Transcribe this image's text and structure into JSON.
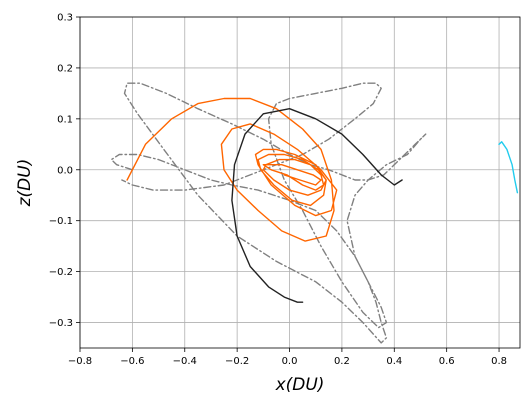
{
  "chart_data": {
    "type": "line",
    "title": "",
    "xlabel": "x(DU)",
    "ylabel": "z(DU)",
    "xlim": [
      -0.8,
      0.88
    ],
    "ylim": [
      -0.35,
      0.3
    ],
    "grid": true,
    "legend": "none",
    "xticks": [
      -0.8,
      -0.6,
      -0.4,
      -0.2,
      0.0,
      0.2,
      0.4,
      0.6,
      0.8
    ],
    "xtick_labels": [
      "−0.8",
      "−0.6",
      "−0.4",
      "−0.2",
      "0.0",
      "0.2",
      "0.4",
      "0.6",
      "0.8"
    ],
    "yticks": [
      -0.3,
      -0.2,
      -0.1,
      0.0,
      0.1,
      0.2,
      0.3
    ],
    "ytick_labels": [
      "−0.3",
      "−0.2",
      "−0.1",
      "0.0",
      "0.1",
      "0.2",
      "0.3"
    ],
    "series": [
      {
        "color": "#808080",
        "style": "dashdot",
        "x": [
          -0.6,
          -0.66,
          -0.68,
          -0.65,
          -0.58,
          -0.5,
          -0.4,
          -0.3,
          -0.22,
          -0.12,
          0.0,
          0.1,
          0.18,
          0.25,
          0.3,
          0.33,
          0.35,
          0.37,
          0.35,
          0.28,
          0.2,
          0.1,
          -0.05,
          -0.2,
          -0.35,
          -0.48,
          -0.58,
          -0.63,
          -0.62,
          -0.57,
          -0.47,
          -0.35,
          -0.22,
          -0.1,
          0.0,
          0.08,
          0.15,
          0.2,
          0.25,
          0.3,
          0.36,
          0.42,
          0.48,
          0.52,
          0.5,
          0.45,
          0.37,
          0.3,
          0.25,
          0.22,
          0.25,
          0.3,
          0.35,
          0.37,
          0.34,
          0.28,
          0.2,
          0.12,
          0.05,
          -0.02,
          -0.07,
          -0.08,
          -0.05,
          0.0,
          0.1,
          0.2,
          0.28,
          0.33,
          0.35,
          0.32,
          0.25,
          0.15,
          0.05,
          -0.1,
          -0.25,
          -0.4,
          -0.52,
          -0.6,
          -0.64
        ],
        "y": [
          0.0,
          0.01,
          0.02,
          0.03,
          0.03,
          0.02,
          0.0,
          -0.02,
          -0.03,
          -0.04,
          -0.06,
          -0.08,
          -0.12,
          -0.17,
          -0.22,
          -0.26,
          -0.3,
          -0.33,
          -0.34,
          -0.3,
          -0.26,
          -0.22,
          -0.18,
          -0.13,
          -0.05,
          0.04,
          0.11,
          0.15,
          0.17,
          0.17,
          0.15,
          0.12,
          0.09,
          0.06,
          0.03,
          0.01,
          0.0,
          -0.01,
          -0.02,
          -0.02,
          -0.01,
          0.02,
          0.05,
          0.07,
          0.06,
          0.03,
          0.01,
          -0.02,
          -0.05,
          -0.1,
          -0.17,
          -0.22,
          -0.27,
          -0.3,
          -0.31,
          -0.28,
          -0.22,
          -0.15,
          -0.08,
          -0.02,
          0.05,
          0.1,
          0.13,
          0.14,
          0.15,
          0.16,
          0.17,
          0.17,
          0.16,
          0.13,
          0.1,
          0.06,
          0.03,
          0.0,
          -0.03,
          -0.04,
          -0.04,
          -0.03,
          -0.02
        ]
      },
      {
        "color": "#ff6600",
        "style": "solid",
        "x": [
          -0.62,
          -0.55,
          -0.45,
          -0.35,
          -0.25,
          -0.15,
          -0.05,
          0.05,
          0.12,
          0.16,
          0.17,
          0.14,
          0.06,
          -0.03,
          -0.12,
          -0.2,
          -0.25,
          -0.26,
          -0.22,
          -0.15,
          -0.06,
          0.03,
          0.12,
          0.18,
          0.16,
          0.1,
          0.02,
          -0.07,
          -0.12,
          -0.13,
          -0.1,
          -0.05,
          0.02,
          0.1,
          0.14,
          0.13,
          0.08,
          0.01,
          -0.06,
          -0.11,
          -0.12,
          -0.08,
          -0.02,
          0.05,
          0.11,
          0.14,
          0.12,
          0.07,
          0.0,
          -0.06,
          -0.1,
          -0.09,
          -0.04,
          0.02,
          0.08,
          0.12,
          0.13,
          0.1,
          0.05,
          -0.01,
          -0.07,
          -0.1,
          -0.08,
          -0.03,
          0.03,
          0.09,
          0.12,
          0.1,
          0.04,
          -0.02
        ],
        "y": [
          -0.02,
          0.05,
          0.1,
          0.13,
          0.14,
          0.14,
          0.12,
          0.08,
          0.04,
          -0.02,
          -0.08,
          -0.13,
          -0.14,
          -0.12,
          -0.08,
          -0.04,
          0.0,
          0.05,
          0.08,
          0.09,
          0.07,
          0.04,
          0.0,
          -0.04,
          -0.08,
          -0.09,
          -0.07,
          -0.03,
          0.01,
          0.03,
          0.04,
          0.04,
          0.03,
          0.01,
          -0.02,
          -0.05,
          -0.07,
          -0.06,
          -0.03,
          0.0,
          0.02,
          0.03,
          0.03,
          0.02,
          0.0,
          -0.02,
          -0.04,
          -0.05,
          -0.04,
          -0.02,
          0.0,
          0.01,
          0.02,
          0.02,
          0.01,
          -0.01,
          -0.03,
          -0.04,
          -0.03,
          -0.01,
          0.0,
          0.01,
          0.01,
          0.01,
          0.0,
          -0.01,
          -0.02,
          -0.03,
          -0.02,
          -0.01
        ]
      },
      {
        "color": "#222222",
        "style": "solid",
        "x": [
          0.43,
          0.4,
          0.35,
          0.28,
          0.2,
          0.1,
          0.0,
          -0.1,
          -0.17,
          -0.21,
          -0.22,
          -0.2,
          -0.15,
          -0.08,
          -0.02,
          0.03,
          0.05
        ],
        "y": [
          -0.02,
          -0.03,
          -0.01,
          0.03,
          0.07,
          0.1,
          0.12,
          0.11,
          0.07,
          0.01,
          -0.06,
          -0.13,
          -0.19,
          -0.23,
          -0.25,
          -0.26,
          -0.26
        ]
      },
      {
        "color": "#22ccee",
        "style": "solid",
        "x": [
          0.8,
          0.81,
          0.83,
          0.85,
          0.86,
          0.87
        ],
        "y": [
          0.05,
          0.055,
          0.04,
          0.01,
          -0.02,
          -0.045
        ]
      }
    ]
  }
}
